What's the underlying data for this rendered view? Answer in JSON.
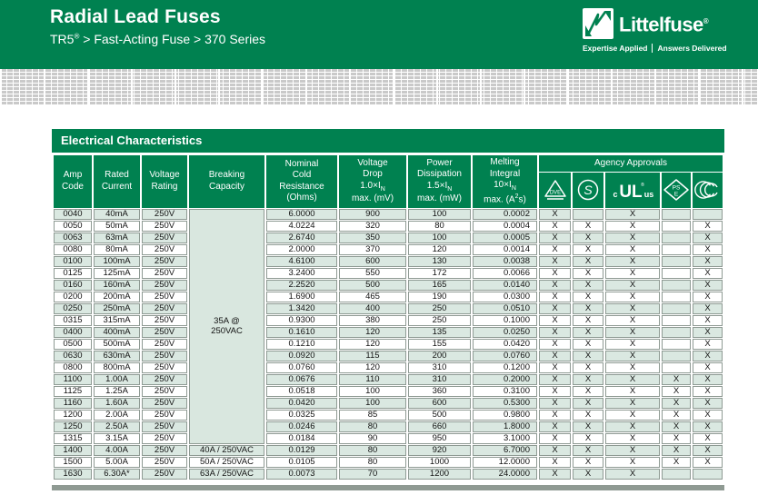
{
  "banner": {
    "title": "Radial Lead Fuses",
    "subtitle": "TR5^®^ > Fast-Acting Fuse > 370 Series",
    "brand": "Littelfuse^®^",
    "tagline_left": "Expertise Applied",
    "tagline_right": "Answers Delivered"
  },
  "colors": {
    "brand_green": "#008150",
    "row_tint": "#dae8e1",
    "checker_gray": "#c9c9c9",
    "bottom_bar_gray": "#8f9a93"
  },
  "section_title": "Electrical Characteristics",
  "icons": {
    "logo": {
      "name": "littelfuse-logo-icon"
    },
    "vde": {
      "label": "DVE"
    },
    "semko": {
      "label": "S"
    },
    "cul": {
      "prefix": "c",
      "label": "UL",
      "reg": "®",
      "suffix": "us"
    },
    "pse": {
      "label1": "PS",
      "label2": "E"
    },
    "ccc": {
      "label": "CCC"
    }
  },
  "table": {
    "headers": {
      "amp_code": "Amp\nCode",
      "rated_current": "Rated\nCurrent",
      "voltage_rating": "Voltage\nRating",
      "breaking_capacity": "Breaking\nCapacity",
      "resistance": "Nominal\nCold\nResistance\n(Ohms)",
      "voltage_drop": "Voltage\nDrop\n1.0×I~N~\nmax. (mV)",
      "power": "Power\nDissipation\n1.5×I~N~\nmax. (mW)",
      "melting": "Melting\nIntegral\n10×I~N~\nmax. (A^2^s)",
      "agency": "Agency Approvals"
    },
    "approval_mark": "X",
    "breaking_capacity_merged": {
      "text": "35A @\n250VAC",
      "rowspan": 20
    },
    "rows": [
      {
        "amp_code": "0040",
        "rated_current": "40mA",
        "voltage_rating": "250V",
        "breaking_capacity": "",
        "resistance": "6.0000",
        "voltage_drop": "900",
        "power": "100",
        "melting": "0.0002",
        "approvals": [
          1,
          0,
          1,
          0,
          0
        ]
      },
      {
        "amp_code": "0050",
        "rated_current": "50mA",
        "voltage_rating": "250V",
        "breaking_capacity": "",
        "resistance": "4.0224",
        "voltage_drop": "320",
        "power": "80",
        "melting": "0.0004",
        "approvals": [
          1,
          1,
          1,
          0,
          1
        ]
      },
      {
        "amp_code": "0063",
        "rated_current": "63mA",
        "voltage_rating": "250V",
        "breaking_capacity": "",
        "resistance": "2.6740",
        "voltage_drop": "350",
        "power": "100",
        "melting": "0.0005",
        "approvals": [
          1,
          1,
          1,
          0,
          1
        ]
      },
      {
        "amp_code": "0080",
        "rated_current": "80mA",
        "voltage_rating": "250V",
        "breaking_capacity": "",
        "resistance": "2.0000",
        "voltage_drop": "370",
        "power": "120",
        "melting": "0.0014",
        "approvals": [
          1,
          1,
          1,
          0,
          1
        ]
      },
      {
        "amp_code": "0100",
        "rated_current": "100mA",
        "voltage_rating": "250V",
        "breaking_capacity": "",
        "resistance": "4.6100",
        "voltage_drop": "600",
        "power": "130",
        "melting": "0.0038",
        "approvals": [
          1,
          1,
          1,
          0,
          1
        ]
      },
      {
        "amp_code": "0125",
        "rated_current": "125mA",
        "voltage_rating": "250V",
        "breaking_capacity": "",
        "resistance": "3.2400",
        "voltage_drop": "550",
        "power": "172",
        "melting": "0.0066",
        "approvals": [
          1,
          1,
          1,
          0,
          1
        ]
      },
      {
        "amp_code": "0160",
        "rated_current": "160mA",
        "voltage_rating": "250V",
        "breaking_capacity": "",
        "resistance": "2.2520",
        "voltage_drop": "500",
        "power": "165",
        "melting": "0.0140",
        "approvals": [
          1,
          1,
          1,
          0,
          1
        ]
      },
      {
        "amp_code": "0200",
        "rated_current": "200mA",
        "voltage_rating": "250V",
        "breaking_capacity": "",
        "resistance": "1.6900",
        "voltage_drop": "465",
        "power": "190",
        "melting": "0.0300",
        "approvals": [
          1,
          1,
          1,
          0,
          1
        ]
      },
      {
        "amp_code": "0250",
        "rated_current": "250mA",
        "voltage_rating": "250V",
        "breaking_capacity": "",
        "resistance": "1.3420",
        "voltage_drop": "400",
        "power": "250",
        "melting": "0.0510",
        "approvals": [
          1,
          1,
          1,
          0,
          1
        ]
      },
      {
        "amp_code": "0315",
        "rated_current": "315mA",
        "voltage_rating": "250V",
        "breaking_capacity": "",
        "resistance": "0.9300",
        "voltage_drop": "380",
        "power": "250",
        "melting": "0.1000",
        "approvals": [
          1,
          1,
          1,
          0,
          1
        ]
      },
      {
        "amp_code": "0400",
        "rated_current": "400mA",
        "voltage_rating": "250V",
        "breaking_capacity": "",
        "resistance": "0.1610",
        "voltage_drop": "120",
        "power": "135",
        "melting": "0.0250",
        "approvals": [
          1,
          1,
          1,
          0,
          1
        ]
      },
      {
        "amp_code": "0500",
        "rated_current": "500mA",
        "voltage_rating": "250V",
        "breaking_capacity": "",
        "resistance": "0.1210",
        "voltage_drop": "120",
        "power": "155",
        "melting": "0.0420",
        "approvals": [
          1,
          1,
          1,
          0,
          1
        ]
      },
      {
        "amp_code": "0630",
        "rated_current": "630mA",
        "voltage_rating": "250V",
        "breaking_capacity": "",
        "resistance": "0.0920",
        "voltage_drop": "115",
        "power": "200",
        "melting": "0.0760",
        "approvals": [
          1,
          1,
          1,
          0,
          1
        ]
      },
      {
        "amp_code": "0800",
        "rated_current": "800mA",
        "voltage_rating": "250V",
        "breaking_capacity": "",
        "resistance": "0.0760",
        "voltage_drop": "120",
        "power": "310",
        "melting": "0.1200",
        "approvals": [
          1,
          1,
          1,
          0,
          1
        ]
      },
      {
        "amp_code": "1100",
        "rated_current": "1.00A",
        "voltage_rating": "250V",
        "breaking_capacity": "",
        "resistance": "0.0676",
        "voltage_drop": "110",
        "power": "310",
        "melting": "0.2000",
        "approvals": [
          1,
          1,
          1,
          1,
          1
        ]
      },
      {
        "amp_code": "1125",
        "rated_current": "1.25A",
        "voltage_rating": "250V",
        "breaking_capacity": "",
        "resistance": "0.0518",
        "voltage_drop": "100",
        "power": "360",
        "melting": "0.3100",
        "approvals": [
          1,
          1,
          1,
          1,
          1
        ]
      },
      {
        "amp_code": "1160",
        "rated_current": "1.60A",
        "voltage_rating": "250V",
        "breaking_capacity": "",
        "resistance": "0.0420",
        "voltage_drop": "100",
        "power": "600",
        "melting": "0.5300",
        "approvals": [
          1,
          1,
          1,
          1,
          1
        ]
      },
      {
        "amp_code": "1200",
        "rated_current": "2.00A",
        "voltage_rating": "250V",
        "breaking_capacity": "",
        "resistance": "0.0325",
        "voltage_drop": "85",
        "power": "500",
        "melting": "0.9800",
        "approvals": [
          1,
          1,
          1,
          1,
          1
        ]
      },
      {
        "amp_code": "1250",
        "rated_current": "2.50A",
        "voltage_rating": "250V",
        "breaking_capacity": "",
        "resistance": "0.0246",
        "voltage_drop": "80",
        "power": "660",
        "melting": "1.8000",
        "approvals": [
          1,
          1,
          1,
          1,
          1
        ]
      },
      {
        "amp_code": "1315",
        "rated_current": "3.15A",
        "voltage_rating": "250V",
        "breaking_capacity": "",
        "resistance": "0.0184",
        "voltage_drop": "90",
        "power": "950",
        "melting": "3.1000",
        "approvals": [
          1,
          1,
          1,
          1,
          1
        ]
      },
      {
        "amp_code": "1400",
        "rated_current": "4.00A",
        "voltage_rating": "250V",
        "breaking_capacity": "40A / 250VAC",
        "resistance": "0.0129",
        "voltage_drop": "80",
        "power": "920",
        "melting": "6.7000",
        "approvals": [
          1,
          1,
          1,
          1,
          1
        ]
      },
      {
        "amp_code": "1500",
        "rated_current": "5.00A",
        "voltage_rating": "250V",
        "breaking_capacity": "50A / 250VAC",
        "resistance": "0.0105",
        "voltage_drop": "80",
        "power": "1000",
        "melting": "12.0000",
        "approvals": [
          1,
          1,
          1,
          1,
          1
        ]
      },
      {
        "amp_code": "1630",
        "rated_current": "6.30A*",
        "voltage_rating": "250V",
        "breaking_capacity": "63A / 250VAC",
        "resistance": "0.0073",
        "voltage_drop": "70",
        "power": "1200",
        "melting": "24.0000",
        "approvals": [
          1,
          1,
          1,
          0,
          0
        ]
      }
    ]
  }
}
